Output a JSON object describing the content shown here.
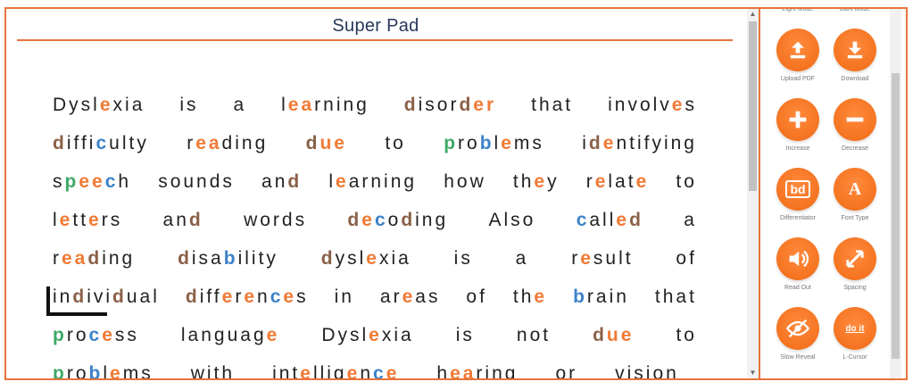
{
  "editor": {
    "title": "Super Pad",
    "lines": [
      [
        [
          {
            "t": "Dysl",
            "c": "d"
          },
          {
            "t": "e",
            "c": "o"
          },
          {
            "t": "xia",
            "c": "d"
          }
        ],
        [
          {
            "t": "is",
            "c": "d"
          }
        ],
        [
          {
            "t": "a",
            "c": "d"
          }
        ],
        [
          {
            "t": "l",
            "c": "d"
          },
          {
            "t": "ea",
            "c": "o"
          },
          {
            "t": "rning",
            "c": "d"
          }
        ],
        [
          {
            "t": "d",
            "c": "b"
          },
          {
            "t": "isor",
            "c": "d"
          },
          {
            "t": "d",
            "c": "b"
          },
          {
            "t": "er",
            "c": "o"
          }
        ],
        [
          {
            "t": "that",
            "c": "d"
          }
        ],
        [
          {
            "t": "involv",
            "c": "d"
          },
          {
            "t": "e",
            "c": "o"
          },
          {
            "t": "s",
            "c": "d"
          }
        ]
      ],
      [
        [
          {
            "t": "d",
            "c": "b"
          },
          {
            "t": "iffi",
            "c": "d"
          },
          {
            "t": "c",
            "c": "n"
          },
          {
            "t": "ulty",
            "c": "d"
          }
        ],
        [
          {
            "t": "r",
            "c": "d"
          },
          {
            "t": "ea",
            "c": "o"
          },
          {
            "t": "ding",
            "c": "d"
          }
        ],
        [
          {
            "t": "d",
            "c": "b"
          },
          {
            "t": "ue",
            "c": "o"
          }
        ],
        [
          {
            "t": "to",
            "c": "d"
          }
        ],
        [
          {
            "t": "p",
            "c": "g"
          },
          {
            "t": "ro",
            "c": "d"
          },
          {
            "t": "b",
            "c": "n"
          },
          {
            "t": "l",
            "c": "d"
          },
          {
            "t": "e",
            "c": "o"
          },
          {
            "t": "ms",
            "c": "d"
          }
        ],
        [
          {
            "t": "i",
            "c": "d"
          },
          {
            "t": "d",
            "c": "b"
          },
          {
            "t": "e",
            "c": "o"
          },
          {
            "t": "ntifying",
            "c": "d"
          }
        ]
      ],
      [
        [
          {
            "t": "s",
            "c": "d"
          },
          {
            "t": "p",
            "c": "g"
          },
          {
            "t": "ee",
            "c": "o"
          },
          {
            "t": "c",
            "c": "n"
          },
          {
            "t": "h",
            "c": "d"
          }
        ],
        [
          {
            "t": "sounds",
            "c": "d"
          }
        ],
        [
          {
            "t": "an",
            "c": "d"
          },
          {
            "t": "d",
            "c": "b"
          }
        ],
        [
          {
            "t": "l",
            "c": "d"
          },
          {
            "t": "e",
            "c": "o"
          },
          {
            "t": "arning",
            "c": "d"
          }
        ],
        [
          {
            "t": "how",
            "c": "d"
          }
        ],
        [
          {
            "t": "th",
            "c": "d"
          },
          {
            "t": "e",
            "c": "o"
          },
          {
            "t": "y",
            "c": "d"
          }
        ],
        [
          {
            "t": "r",
            "c": "d"
          },
          {
            "t": "e",
            "c": "o"
          },
          {
            "t": "lat",
            "c": "d"
          },
          {
            "t": "e",
            "c": "o"
          }
        ],
        [
          {
            "t": "to",
            "c": "d"
          }
        ]
      ],
      [
        [
          {
            "t": "l",
            "c": "d"
          },
          {
            "t": "e",
            "c": "o"
          },
          {
            "t": "tt",
            "c": "d"
          },
          {
            "t": "e",
            "c": "o"
          },
          {
            "t": "rs",
            "c": "d"
          }
        ],
        [
          {
            "t": "an",
            "c": "d"
          },
          {
            "t": "d",
            "c": "b"
          }
        ],
        [
          {
            "t": "words",
            "c": "d"
          }
        ],
        [
          {
            "t": "d",
            "c": "b"
          },
          {
            "t": "e",
            "c": "o"
          },
          {
            "t": "c",
            "c": "n"
          },
          {
            "t": "o",
            "c": "d"
          },
          {
            "t": "d",
            "c": "b"
          },
          {
            "t": "ing",
            "c": "d"
          }
        ],
        [
          {
            "t": "Also",
            "c": "d"
          }
        ],
        [
          {
            "t": "c",
            "c": "n"
          },
          {
            "t": "all",
            "c": "d"
          },
          {
            "t": "e",
            "c": "o"
          },
          {
            "t": "d",
            "c": "b"
          }
        ],
        [
          {
            "t": "a",
            "c": "d"
          }
        ]
      ],
      [
        [
          {
            "t": "r",
            "c": "d"
          },
          {
            "t": "ea",
            "c": "o"
          },
          {
            "t": "d",
            "c": "b"
          },
          {
            "t": "ing",
            "c": "d"
          }
        ],
        [
          {
            "t": "d",
            "c": "b"
          },
          {
            "t": "isa",
            "c": "d"
          },
          {
            "t": "b",
            "c": "n"
          },
          {
            "t": "ility",
            "c": "d"
          }
        ],
        [
          {
            "t": "d",
            "c": "b"
          },
          {
            "t": "ysl",
            "c": "d"
          },
          {
            "t": "e",
            "c": "o"
          },
          {
            "t": "xia",
            "c": "d"
          }
        ],
        [
          {
            "t": "is",
            "c": "d"
          }
        ],
        [
          {
            "t": "a",
            "c": "d"
          }
        ],
        [
          {
            "t": "r",
            "c": "d"
          },
          {
            "t": "e",
            "c": "o"
          },
          {
            "t": "sult",
            "c": "d"
          }
        ],
        [
          {
            "t": "of",
            "c": "d"
          }
        ]
      ],
      [
        [
          {
            "t": "in",
            "c": "d"
          },
          {
            "t": "d",
            "c": "b"
          },
          {
            "t": "ivi",
            "c": "d"
          },
          {
            "t": "d",
            "c": "b"
          },
          {
            "t": "ual",
            "c": "d"
          }
        ],
        [
          {
            "t": "d",
            "c": "b"
          },
          {
            "t": "iff",
            "c": "d"
          },
          {
            "t": "e",
            "c": "o"
          },
          {
            "t": "r",
            "c": "d"
          },
          {
            "t": "e",
            "c": "o"
          },
          {
            "t": "n",
            "c": "d"
          },
          {
            "t": "c",
            "c": "n"
          },
          {
            "t": "e",
            "c": "o"
          },
          {
            "t": "s",
            "c": "d"
          }
        ],
        [
          {
            "t": "in",
            "c": "d"
          }
        ],
        [
          {
            "t": "ar",
            "c": "d"
          },
          {
            "t": "e",
            "c": "o"
          },
          {
            "t": "as",
            "c": "d"
          }
        ],
        [
          {
            "t": "of",
            "c": "d"
          }
        ],
        [
          {
            "t": "th",
            "c": "d"
          },
          {
            "t": "e",
            "c": "o"
          }
        ],
        [
          {
            "t": "b",
            "c": "n"
          },
          {
            "t": "rain",
            "c": "d"
          }
        ],
        [
          {
            "t": "that",
            "c": "d"
          }
        ]
      ],
      [
        [
          {
            "t": "p",
            "c": "g"
          },
          {
            "t": "ro",
            "c": "d"
          },
          {
            "t": "c",
            "c": "n"
          },
          {
            "t": "e",
            "c": "o"
          },
          {
            "t": "ss",
            "c": "d"
          }
        ],
        [
          {
            "t": "languag",
            "c": "d"
          },
          {
            "t": "e",
            "c": "o"
          }
        ],
        [
          {
            "t": "Dysl",
            "c": "d"
          },
          {
            "t": "e",
            "c": "o"
          },
          {
            "t": "xia",
            "c": "d"
          }
        ],
        [
          {
            "t": "is",
            "c": "d"
          }
        ],
        [
          {
            "t": "not",
            "c": "d"
          }
        ],
        [
          {
            "t": "d",
            "c": "b"
          },
          {
            "t": "ue",
            "c": "o"
          }
        ],
        [
          {
            "t": "to",
            "c": "d"
          }
        ]
      ],
      [
        [
          {
            "t": "p",
            "c": "g"
          },
          {
            "t": "ro",
            "c": "d"
          },
          {
            "t": "b",
            "c": "n"
          },
          {
            "t": "l",
            "c": "d"
          },
          {
            "t": "e",
            "c": "o"
          },
          {
            "t": "ms",
            "c": "d"
          }
        ],
        [
          {
            "t": "with",
            "c": "d"
          }
        ],
        [
          {
            "t": "int",
            "c": "d"
          },
          {
            "t": "e",
            "c": "o"
          },
          {
            "t": "llig",
            "c": "d"
          },
          {
            "t": "e",
            "c": "o"
          },
          {
            "t": "n",
            "c": "d"
          },
          {
            "t": "c",
            "c": "n"
          },
          {
            "t": "e",
            "c": "o"
          }
        ],
        [
          {
            "t": "h",
            "c": "d"
          },
          {
            "t": "ea",
            "c": "o"
          },
          {
            "t": "ring",
            "c": "d"
          }
        ],
        [
          {
            "t": "or",
            "c": "d"
          }
        ],
        [
          {
            "t": "vision",
            "c": "d"
          }
        ]
      ]
    ]
  },
  "colors": {
    "d": "#222222",
    "o": "#f07a35",
    "b": "#8a6048",
    "n": "#3c82c8",
    "g": "#3fa868",
    "accent": "#e8743b",
    "title": "#27365a"
  },
  "tools": [
    {
      "id": "light-mode",
      "label": "Light Mode",
      "icon": "sun-icon"
    },
    {
      "id": "dark-mode",
      "label": "Dark Mode",
      "icon": "moon-icon"
    },
    {
      "id": "upload-pdf",
      "label": "Upload PDF",
      "icon": "upload-icon"
    },
    {
      "id": "download",
      "label": "Download",
      "icon": "download-icon"
    },
    {
      "id": "increase",
      "label": "Increase",
      "icon": "plus-icon"
    },
    {
      "id": "decrease",
      "label": "Decrease",
      "icon": "minus-icon"
    },
    {
      "id": "differentiator",
      "label": "Differentiator",
      "icon": "bd-icon",
      "glyph": "bd"
    },
    {
      "id": "font-type",
      "label": "Font Type",
      "icon": "font-icon",
      "glyph": "A"
    },
    {
      "id": "read-out",
      "label": "Read Out",
      "icon": "speaker-icon"
    },
    {
      "id": "spacing",
      "label": "Spacing",
      "icon": "expand-icon"
    },
    {
      "id": "slow-reveal",
      "label": "Slow Reveal",
      "icon": "eye-slash-icon"
    },
    {
      "id": "l-cursor",
      "label": "L-Cursor",
      "icon": "l-cursor-icon",
      "glyph": "do it"
    }
  ]
}
